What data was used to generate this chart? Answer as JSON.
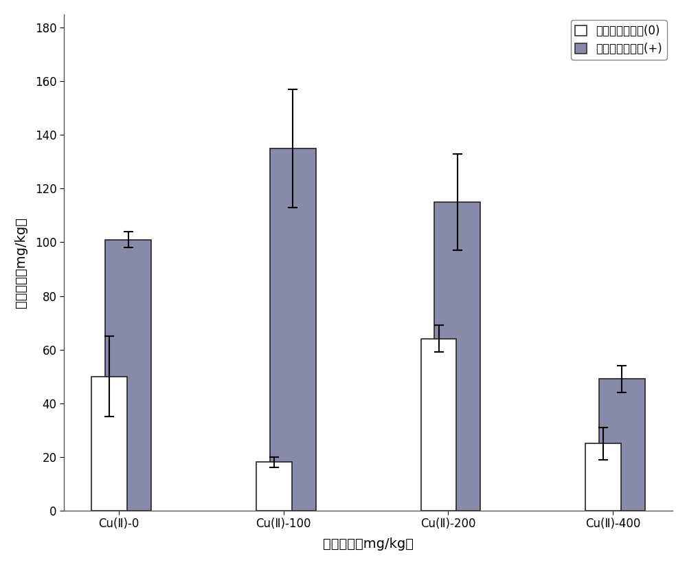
{
  "categories": [
    "Cu(Ⅱ)-0",
    "Cu(Ⅱ)-100",
    "Cu(Ⅱ)-200",
    "Cu(Ⅱ)-400"
  ],
  "series": [
    {
      "label": "地上部分铜含量(0)",
      "values": [
        50,
        18,
        64,
        25
      ],
      "errors": [
        15,
        2,
        5,
        6
      ],
      "color": "white",
      "edgecolor": "#222222"
    },
    {
      "label": "地上部分铜含量(+)",
      "values": [
        101,
        135,
        115,
        49
      ],
      "errors": [
        3,
        22,
        18,
        5
      ],
      "color": "#7a7a9a",
      "edgecolor": "#222222"
    }
  ],
  "ylabel": "蔓积浓度（mg/kg）",
  "xlabel": "处理浓度（mg/kg）",
  "ylim": [
    0,
    185
  ],
  "yticks": [
    0,
    20,
    40,
    60,
    80,
    100,
    120,
    140,
    160,
    180
  ],
  "bar_width": 0.38,
  "background_color": "#ffffff",
  "figure_facecolor": "#ffffff",
  "legend_loc": "upper right"
}
